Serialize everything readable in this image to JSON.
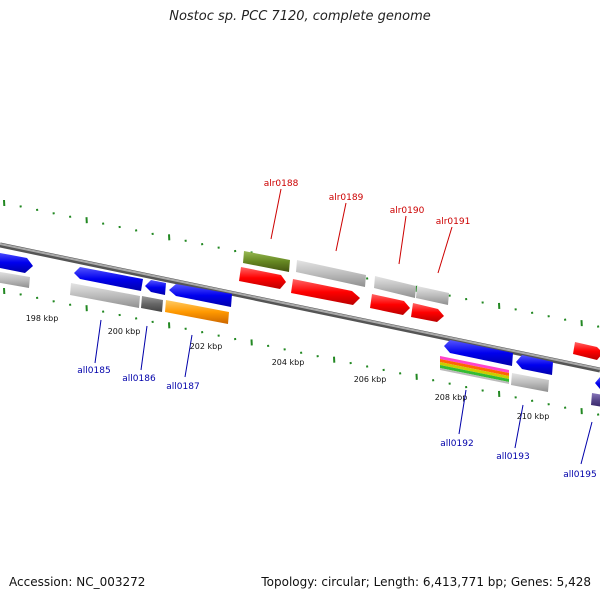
{
  "title": "Nostoc sp. PCC 7120, complete genome",
  "footer": {
    "accession": "Accession: NC_003272",
    "summary": "Topology: circular; Length: 6,413,771 bp; Genes: 5,428"
  },
  "colors": {
    "forward_label": "#cc0000",
    "reverse_label": "#0000aa",
    "backbone": "#888888",
    "tick": "#228822"
  },
  "scale_labels": [
    "198 kbp",
    "200 kbp",
    "202 kbp",
    "204 kbp",
    "206 kbp",
    "208 kbp",
    "210 kbp"
  ],
  "forward_genes": [
    {
      "name": "alr0188",
      "color": "#668822"
    },
    {
      "name": "alr0189",
      "color": "#bbbbbb"
    },
    {
      "name": "alr0190",
      "color": "#bbbbbb"
    },
    {
      "name": "alr0191",
      "color": "#bbbbbb"
    }
  ],
  "reverse_genes": [
    {
      "name": "all0185",
      "color": "#bbbbbb"
    },
    {
      "name": "all0186",
      "color": "#666666"
    },
    {
      "name": "all0187",
      "color": "#ff9900"
    },
    {
      "name": "all0192",
      "color": "#bbbbbb"
    },
    {
      "name": "all0193",
      "color": "#bbbbbb"
    },
    {
      "name": "all0195",
      "color": "#554488"
    }
  ]
}
